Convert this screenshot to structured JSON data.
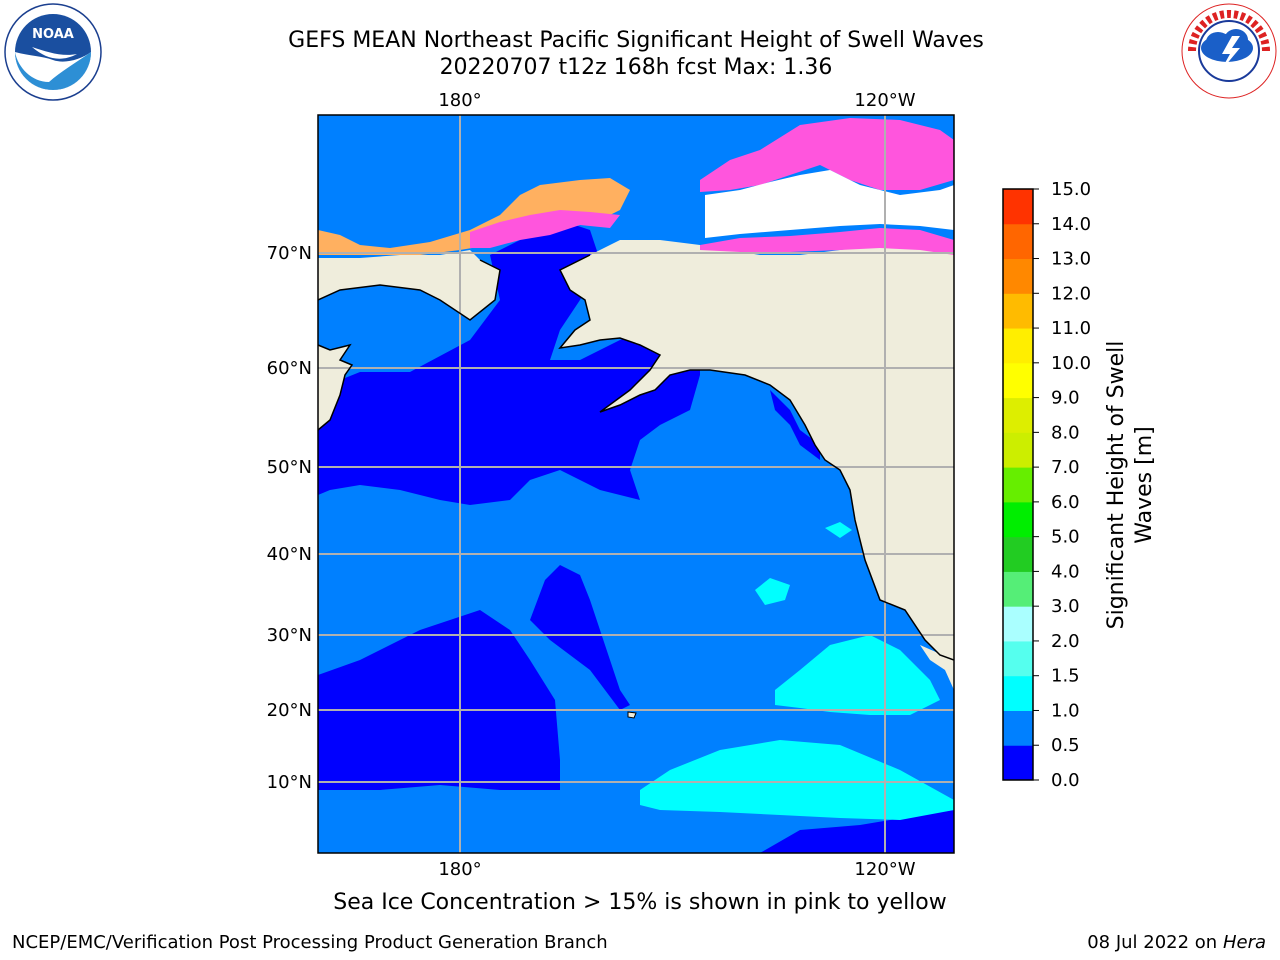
{
  "header": {
    "title_line1": "GEFS MEAN Northeast Pacific Significant Height of Swell Waves",
    "title_line2": "20220707 t12z 168h fcst   Max: 1.36"
  },
  "logos": {
    "left": {
      "text": "NOAA",
      "ring_text": "NATIONAL OCEANIC AND ATMOSPHERIC ADMINISTRATION · U.S. DEPARTMENT OF COMMERCE"
    },
    "right": {
      "ring_text": "NATIONAL WEATHER SERVICE"
    }
  },
  "map": {
    "lon_labels_top": [
      "180°",
      "120°W"
    ],
    "lon_labels_bottom": [
      "180°",
      "120°W"
    ],
    "lat_labels": [
      "70°N",
      "60°N",
      "50°N",
      "40°N",
      "30°N",
      "20°N",
      "10°N"
    ],
    "colors": {
      "land": "#efeddc",
      "band_0_05": "#0000ff",
      "band_05_10": "#0080ff",
      "band_10_15": "#00ffff",
      "grid": "#b0b0b0",
      "ice_pink": "#ff55dd",
      "ice_orange": "#ffb060"
    }
  },
  "colorbar": {
    "label": "Significant Height of Swell Waves [m]",
    "ticks": [
      "15.0",
      "14.0",
      "13.0",
      "12.0",
      "11.0",
      "10.0",
      "9.0",
      "8.0",
      "7.0",
      "6.0",
      "5.0",
      "4.0",
      "3.0",
      "2.0",
      "1.5",
      "1.0",
      "0.5",
      "0.0"
    ],
    "colors": [
      "#0000ff",
      "#0080ff",
      "#00ffff",
      "#55ffee",
      "#aaffff",
      "#55ee77",
      "#22cc22",
      "#00ee00",
      "#66ee00",
      "#ccee00",
      "#ddee00",
      "#ffff00",
      "#ffee00",
      "#ffbb00",
      "#ff8800",
      "#ff6600",
      "#ff3300",
      "#ff0000"
    ]
  },
  "caption": "Sea Ice Concentration > 15% is shown in pink to yellow",
  "footer": {
    "left": "NCEP/EMC/Verification Post Processing Product Generation Branch",
    "right_date": "08 Jul 2022 on ",
    "right_host": "Hera"
  }
}
